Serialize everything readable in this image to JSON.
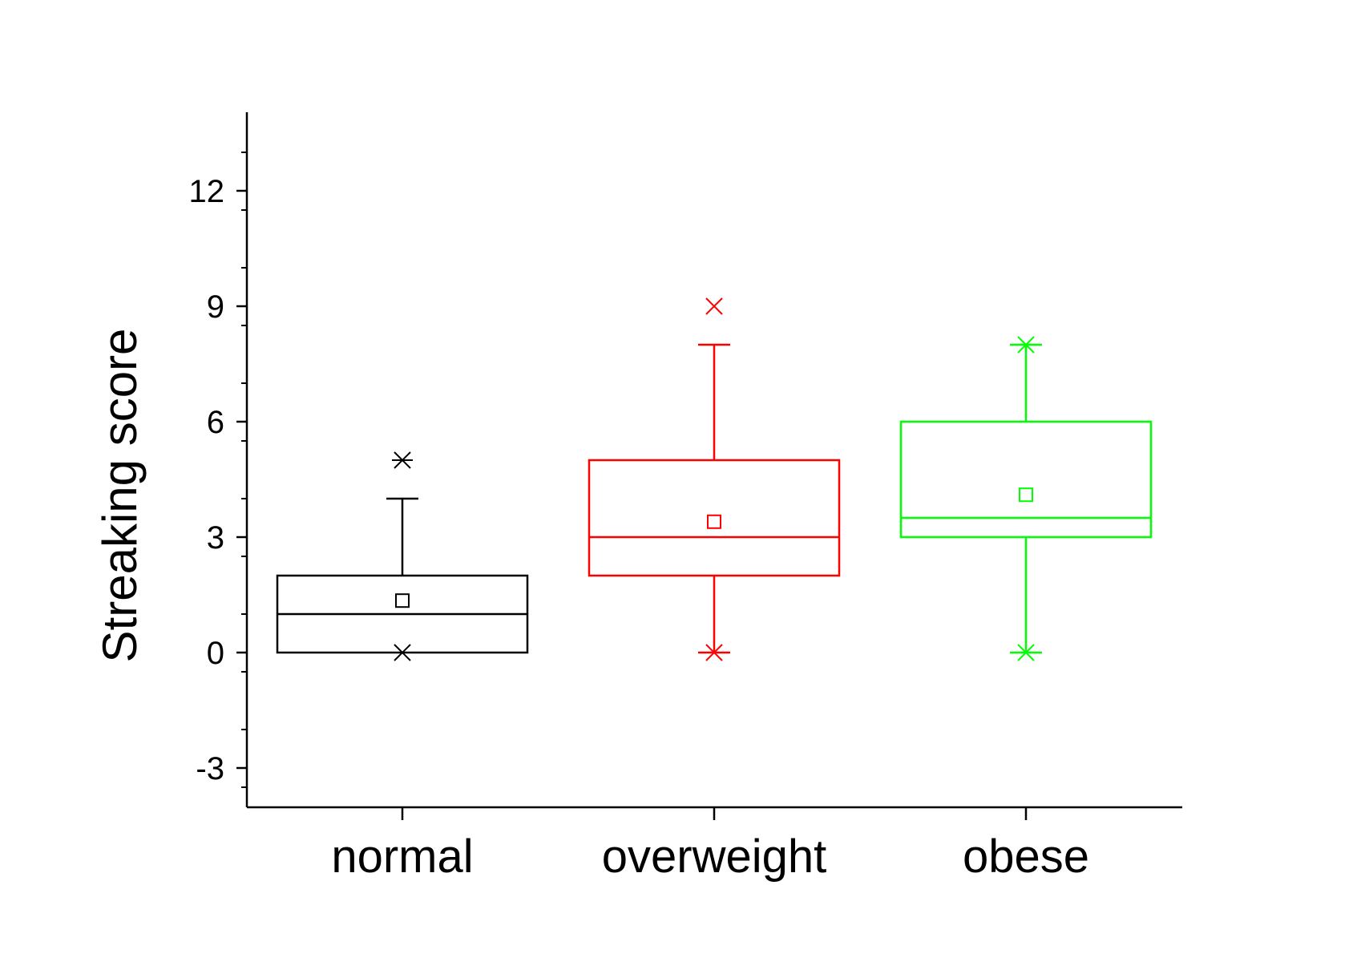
{
  "chart_data": {
    "type": "box",
    "title": "",
    "xlabel": "",
    "ylabel": "Streaking score",
    "ylim": [
      -4,
      14
    ],
    "yticks": [
      -3,
      0,
      3,
      6,
      9,
      12
    ],
    "ytick_labels": [
      "-3",
      "0",
      "3",
      "6",
      "9",
      "12"
    ],
    "yminor_step": 1.5,
    "grid": false,
    "legend": "none",
    "categories": [
      "normal",
      "overweight",
      "obese"
    ],
    "series": [
      {
        "name": "normal",
        "color": "#000000",
        "q1": 0,
        "median": 1,
        "q3": 2,
        "whisker_low": 0,
        "whisker_high": 4,
        "mean": 1.35,
        "min_marker": 0,
        "max_marker": 5
      },
      {
        "name": "overweight",
        "color": "#ff0000",
        "q1": 2,
        "median": 3,
        "q3": 5,
        "whisker_low": 0,
        "whisker_high": 8,
        "mean": 3.4,
        "min_marker": 0,
        "max_marker": 9
      },
      {
        "name": "obese",
        "color": "#00ff00",
        "q1": 3,
        "median": 3.5,
        "q3": 6,
        "whisker_low": 0,
        "whisker_high": 8,
        "mean": 4.1,
        "min_marker": 0,
        "max_marker": 8
      }
    ]
  }
}
